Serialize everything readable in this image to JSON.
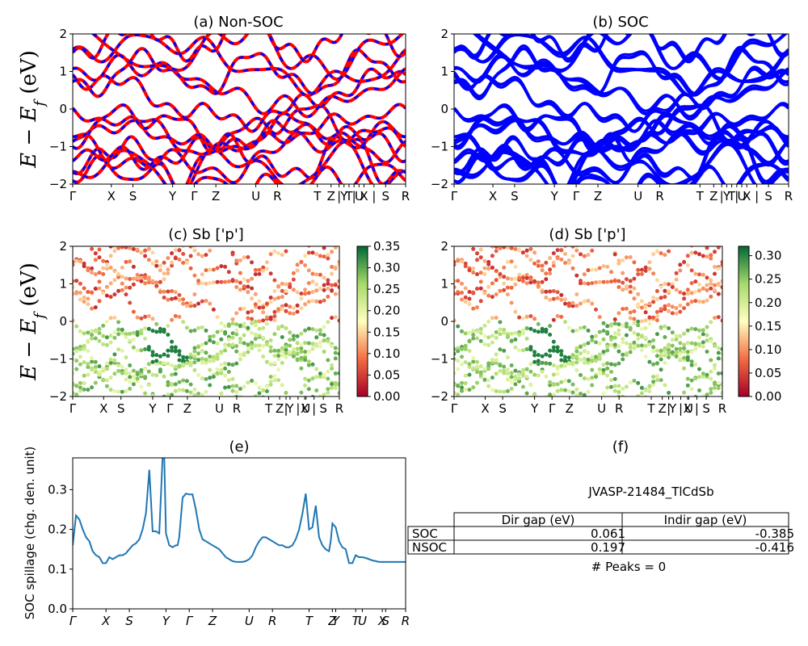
{
  "chart_data": [
    {
      "id": "a",
      "type": "line",
      "title": "(a) Non-SOC",
      "ylabel": "$E-E_f$ (eV)",
      "ylim": [
        -2,
        2
      ],
      "yticks": [
        "2",
        "1",
        "0",
        "−1",
        "−2"
      ],
      "xticks": [
        "Γ",
        "X",
        "S",
        "Y",
        "Γ",
        "Z",
        "U",
        "R",
        "T",
        "Z",
        "|",
        "Y",
        "T",
        "|",
        "U",
        "X",
        "|",
        "S",
        "R"
      ],
      "xtick_pos": [
        0,
        0.116,
        0.181,
        0.3,
        0.365,
        0.43,
        0.55,
        0.615,
        0.735,
        0.776,
        0.8,
        0.815,
        0.83,
        0.845,
        0.86,
        0.875,
        0.905,
        0.94,
        1.0
      ],
      "series_colors": [
        "#ff0000",
        "#0000ff"
      ]
    },
    {
      "id": "b",
      "type": "line",
      "title": "(b) SOC",
      "ylim": [
        -2,
        2
      ],
      "yticks": [
        "2",
        "1",
        "0",
        "−1",
        "−2"
      ],
      "xticks": [
        "Γ",
        "X",
        "S",
        "Y",
        "Γ",
        "Z",
        "U",
        "R",
        "T",
        "Z",
        "|",
        "Y",
        "T",
        "|",
        "U",
        "X",
        "|",
        "S",
        "R"
      ],
      "xtick_pos": [
        0,
        0.116,
        0.181,
        0.3,
        0.365,
        0.43,
        0.55,
        0.615,
        0.735,
        0.776,
        0.8,
        0.815,
        0.83,
        0.845,
        0.86,
        0.875,
        0.905,
        0.94,
        1.0
      ],
      "series_colors": [
        "#0000ff"
      ]
    },
    {
      "id": "c",
      "type": "scatter",
      "title": "(c)  Sb ['p']",
      "ylabel": "$E-E_f$ (eV)",
      "ylim": [
        -2,
        2
      ],
      "yticks": [
        "2",
        "1",
        "0",
        "−1",
        "−2"
      ],
      "xticks": [
        "Γ",
        "X",
        "S",
        "Y",
        "Γ",
        "Z",
        "U",
        "R",
        "T",
        "Z",
        "|",
        "Y",
        "|",
        "X",
        "U",
        "|",
        "S",
        "R"
      ],
      "xtick_pos": [
        0,
        0.116,
        0.181,
        0.3,
        0.365,
        0.43,
        0.55,
        0.615,
        0.735,
        0.776,
        0.8,
        0.815,
        0.845,
        0.87,
        0.875,
        0.905,
        0.94,
        1.0
      ],
      "colorbar": {
        "min": 0.0,
        "max": 0.35,
        "ticks": [
          "0.35",
          "0.30",
          "0.25",
          "0.20",
          "0.15",
          "0.10",
          "0.05",
          "0.00"
        ],
        "colormap": "RdYlGn"
      }
    },
    {
      "id": "d",
      "type": "scatter",
      "title": "(d) Sb ['p']",
      "ylim": [
        -2,
        2
      ],
      "yticks": [
        "2",
        "1",
        "0",
        "−1",
        "−2"
      ],
      "xticks": [
        "Γ",
        "X",
        "S",
        "Y",
        "Γ",
        "Z",
        "U",
        "R",
        "T",
        "Z",
        "|",
        "Y",
        "|",
        "X",
        "U",
        "|",
        "S",
        "R"
      ],
      "xtick_pos": [
        0,
        0.116,
        0.181,
        0.3,
        0.365,
        0.43,
        0.55,
        0.615,
        0.735,
        0.776,
        0.8,
        0.815,
        0.845,
        0.87,
        0.875,
        0.905,
        0.94,
        1.0
      ],
      "colorbar": {
        "min": 0.0,
        "max": 0.32,
        "ticks": [
          "0.30",
          "0.25",
          "0.20",
          "0.15",
          "0.10",
          "0.05",
          "0.00"
        ],
        "colormap": "RdYlGn"
      }
    },
    {
      "id": "e",
      "type": "line",
      "title": "(e)",
      "ylabel": "SOC spillage (chg. den. unit)",
      "ylim": [
        0.0,
        0.38
      ],
      "yticks": [
        "0.3",
        "0.2",
        "0.1",
        "0.0"
      ],
      "ytick_vals": [
        0.3,
        0.2,
        0.1,
        0.0
      ],
      "xticks": [
        "Γ",
        "X",
        "S",
        "Y",
        "Γ",
        "Z",
        "U",
        "R",
        "T",
        "Z",
        "Y",
        "T",
        "U",
        "X",
        "S",
        "R"
      ],
      "xtick_pos": [
        0,
        0.1,
        0.17,
        0.28,
        0.35,
        0.42,
        0.53,
        0.6,
        0.71,
        0.78,
        0.79,
        0.85,
        0.87,
        0.93,
        0.94,
        1.0
      ],
      "series": [
        {
          "color": "#1f77b4",
          "x": [
            0,
            0.01,
            0.02,
            0.03,
            0.04,
            0.05,
            0.06,
            0.07,
            0.08,
            0.09,
            0.1,
            0.11,
            0.12,
            0.13,
            0.14,
            0.15,
            0.16,
            0.17,
            0.18,
            0.19,
            0.2,
            0.21,
            0.22,
            0.23,
            0.24,
            0.25,
            0.26,
            0.27,
            0.275,
            0.28,
            0.29,
            0.3,
            0.31,
            0.315,
            0.32,
            0.33,
            0.34,
            0.35,
            0.36,
            0.37,
            0.38,
            0.39,
            0.4,
            0.41,
            0.42,
            0.43,
            0.44,
            0.45,
            0.46,
            0.47,
            0.48,
            0.49,
            0.5,
            0.51,
            0.52,
            0.53,
            0.54,
            0.55,
            0.56,
            0.57,
            0.58,
            0.59,
            0.6,
            0.61,
            0.62,
            0.63,
            0.64,
            0.65,
            0.66,
            0.67,
            0.68,
            0.69,
            0.7,
            0.71,
            0.72,
            0.73,
            0.74,
            0.75,
            0.76,
            0.77,
            0.775,
            0.78,
            0.79,
            0.8,
            0.81,
            0.82,
            0.83,
            0.84,
            0.85,
            0.86,
            0.87,
            0.88,
            0.89,
            0.9,
            0.91,
            0.92,
            0.93,
            0.94,
            0.95,
            0.96,
            0.97,
            0.98,
            0.99,
            1.0
          ],
          "y": [
            0.16,
            0.235,
            0.225,
            0.2,
            0.18,
            0.17,
            0.145,
            0.135,
            0.13,
            0.115,
            0.115,
            0.13,
            0.125,
            0.13,
            0.135,
            0.135,
            0.14,
            0.15,
            0.16,
            0.165,
            0.175,
            0.2,
            0.24,
            0.35,
            0.195,
            0.195,
            0.19,
            0.38,
            0.38,
            0.19,
            0.16,
            0.155,
            0.16,
            0.16,
            0.18,
            0.28,
            0.29,
            0.288,
            0.288,
            0.25,
            0.2,
            0.175,
            0.17,
            0.165,
            0.16,
            0.155,
            0.15,
            0.14,
            0.13,
            0.125,
            0.12,
            0.118,
            0.118,
            0.118,
            0.12,
            0.125,
            0.135,
            0.155,
            0.17,
            0.18,
            0.18,
            0.175,
            0.17,
            0.165,
            0.16,
            0.16,
            0.155,
            0.155,
            0.16,
            0.175,
            0.2,
            0.24,
            0.29,
            0.2,
            0.205,
            0.26,
            0.18,
            0.16,
            0.15,
            0.145,
            0.17,
            0.215,
            0.205,
            0.17,
            0.155,
            0.15,
            0.115,
            0.115,
            0.135,
            0.13,
            0.13,
            0.128,
            0.125,
            0.122,
            0.12,
            0.118,
            0.118,
            0.118,
            0.118,
            0.118,
            0.118,
            0.118,
            0.118,
            0.118
          ]
        }
      ]
    },
    {
      "id": "f",
      "type": "table",
      "title": "(f)",
      "caption": "JVASP-21484_TlCdSb",
      "columns": [
        "Dir gap (eV)",
        "Indir gap (eV)"
      ],
      "rows": [
        {
          "label": "SOC",
          "values": [
            "0.061",
            "-0.385"
          ]
        },
        {
          "label": "NSOC",
          "values": [
            "0.197",
            "-0.416"
          ]
        }
      ],
      "footer": "# Peaks = 0"
    }
  ]
}
